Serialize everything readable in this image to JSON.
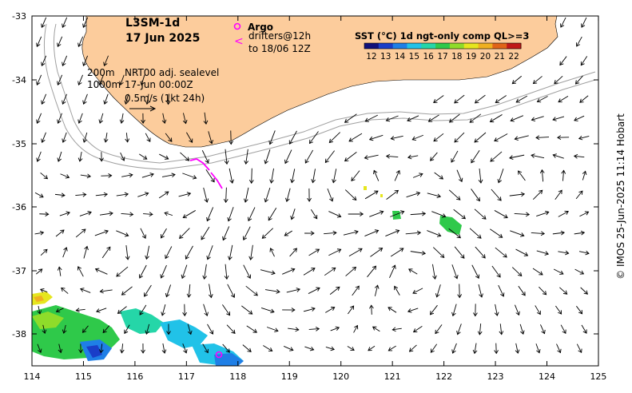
{
  "product_title": "L3SM-1d",
  "date_title": "17 Jun 2025",
  "legend": {
    "argo": "Argo",
    "drifters": "drifters@12h",
    "drifters_to": "to 18/06 12Z",
    "argo_symbol": "o",
    "drifter_symbol": "<"
  },
  "notes": {
    "isobath_shallow": "200m",
    "isobath_deep": "1000m",
    "current_source": "NRT00 adj. sealevel",
    "current_time": "17-Jun 00:00Z",
    "scale": "0.5m/s (1kt 24h)"
  },
  "colorbar": {
    "title": "SST (°C) 1d ngt-only comp QL>=3",
    "ticks": [
      "12",
      "13",
      "14",
      "15",
      "16",
      "17",
      "18",
      "19",
      "20",
      "21",
      "22"
    ],
    "colors": [
      "#10107a",
      "#1a3ec8",
      "#1f7fe6",
      "#21c2e8",
      "#25d6a8",
      "#2fc94a",
      "#8fdc2a",
      "#e6e61e",
      "#f0b020",
      "#e06418",
      "#c01818"
    ]
  },
  "axes": {
    "x_ticks": [
      "114",
      "115",
      "116",
      "117",
      "118",
      "119",
      "120",
      "121",
      "122",
      "123",
      "124",
      "125"
    ],
    "y_ticks": [
      "-33",
      "-34",
      "-35",
      "-36",
      "-37",
      "-38"
    ]
  },
  "credit": "© IMOS 25-Jun-2025 11:14 Hobart",
  "colors": {
    "land": "#fccc9c",
    "argo": "#ff00ff",
    "isobath": "#a0a0a0"
  }
}
